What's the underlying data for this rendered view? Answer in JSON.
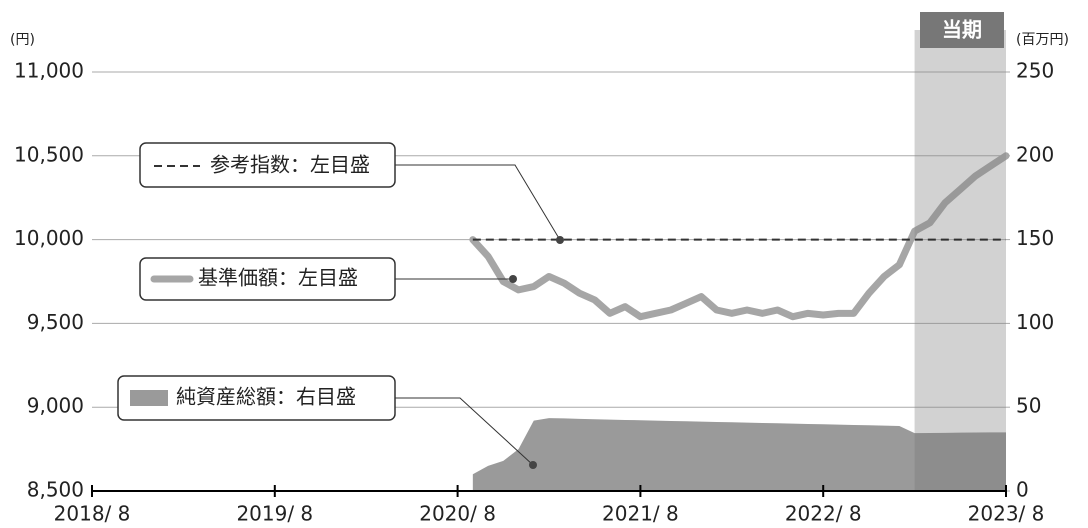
{
  "chart_data": {
    "type": "line",
    "y_unit": "(円)",
    "y2_unit": "(百万円)",
    "highlight": {
      "label": "当期",
      "start": "2023/2",
      "end": "2023/8",
      "color": "#e4e4e4"
    },
    "x": [
      "2020/9",
      "2020/10",
      "2020/11",
      "2020/12",
      "2021/1",
      "2021/2",
      "2021/3",
      "2021/4",
      "2021/5",
      "2021/6",
      "2021/7",
      "2021/8",
      "2021/9",
      "2021/10",
      "2021/11",
      "2021/12",
      "2022/1",
      "2022/2",
      "2022/3",
      "2022/4",
      "2022/5",
      "2022/6",
      "2022/7",
      "2022/8",
      "2022/9",
      "2022/10",
      "2022/11",
      "2022/12",
      "2023/1",
      "2023/2",
      "2023/3",
      "2023/4",
      "2023/5",
      "2023/6",
      "2023/7",
      "2023/8"
    ],
    "xlim": [
      "2018/8",
      "2023/8"
    ],
    "xticks": [
      {
        "value": "2018/8",
        "label": "2018/ 8"
      },
      {
        "value": "2019/8",
        "label": "2019/ 8"
      },
      {
        "value": "2020/8",
        "label": "2020/ 8"
      },
      {
        "value": "2021/8",
        "label": "2021/ 8"
      },
      {
        "value": "2022/8",
        "label": "2022/ 8"
      },
      {
        "value": "2023/8",
        "label": "2023/ 8"
      }
    ],
    "ylim": [
      8500,
      11000
    ],
    "yticks": [
      {
        "value": 8500,
        "label": "8,500"
      },
      {
        "value": 9000,
        "label": "9,000"
      },
      {
        "value": 9500,
        "label": "9,500"
      },
      {
        "value": 10000,
        "label": "10,000"
      },
      {
        "value": 10500,
        "label": "10,500"
      },
      {
        "value": 11000,
        "label": "11,000"
      }
    ],
    "y2lim": [
      0,
      250
    ],
    "y2ticks": [
      0,
      50,
      100,
      150,
      200,
      250
    ],
    "grid": true,
    "series": [
      {
        "name": "参考指数：左目盛",
        "type": "dashed",
        "color": "#333333",
        "values": [
          10000,
          10000,
          10000,
          10000,
          10000,
          10000,
          10000,
          10000,
          10000,
          10000,
          10000,
          10000,
          10000,
          10000,
          10000,
          10000,
          10000,
          10000,
          10000,
          10000,
          10000,
          10000,
          10000,
          10000,
          10000,
          10000,
          10000,
          10000,
          10000,
          10000,
          10000,
          10000,
          10000,
          10000,
          10000,
          10000
        ]
      },
      {
        "name": "基準価額：左目盛",
        "type": "line",
        "color": "#a6a6a6",
        "values": [
          10000,
          9900,
          9750,
          9700,
          9720,
          9780,
          9740,
          9680,
          9640,
          9560,
          9600,
          9540,
          9560,
          9580,
          9620,
          9660,
          9580,
          9560,
          9580,
          9560,
          9580,
          9540,
          9560,
          9550,
          9560,
          9560,
          9680,
          9780,
          9850,
          10050,
          10100,
          10220,
          10300,
          10380,
          10440,
          10500
        ]
      },
      {
        "name": "純資産総額：右目盛",
        "type": "area",
        "axis": "y2",
        "color": "#9a9a9a",
        "values": [
          10,
          15,
          18,
          25,
          42,
          43.5,
          43.3,
          43,
          42.8,
          42.6,
          42.4,
          42.2,
          42,
          41.8,
          41.6,
          41.4,
          41.2,
          41,
          40.8,
          40.6,
          40.4,
          40.2,
          40,
          39.8,
          39.6,
          39.4,
          39.2,
          39,
          38.8,
          34.5,
          34.6,
          34.7,
          34.8,
          34.9,
          35,
          35
        ]
      }
    ]
  }
}
